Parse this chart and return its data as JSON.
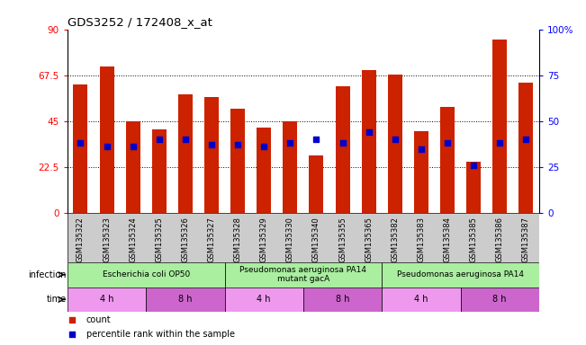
{
  "title": "GDS3252 / 172408_x_at",
  "samples": [
    "GSM135322",
    "GSM135323",
    "GSM135324",
    "GSM135325",
    "GSM135326",
    "GSM135327",
    "GSM135328",
    "GSM135329",
    "GSM135330",
    "GSM135340",
    "GSM135355",
    "GSM135365",
    "GSM135382",
    "GSM135383",
    "GSM135384",
    "GSM135385",
    "GSM135386",
    "GSM135387"
  ],
  "red_values": [
    63,
    72,
    45,
    41,
    58,
    57,
    51,
    42,
    45,
    28,
    62,
    70,
    68,
    40,
    52,
    25,
    85,
    64
  ],
  "blue_values": [
    38,
    36,
    36,
    40,
    40,
    37,
    37,
    36,
    38,
    40,
    38,
    44,
    40,
    35,
    38,
    26,
    38,
    40
  ],
  "ylim_left": [
    0,
    90
  ],
  "ylim_right": [
    0,
    100
  ],
  "yticks_left": [
    0,
    22.5,
    45,
    67.5,
    90
  ],
  "yticks_right": [
    0,
    25,
    50,
    75,
    100
  ],
  "ytick_labels_left": [
    "0",
    "22.5",
    "45",
    "67.5",
    "90"
  ],
  "ytick_labels_right": [
    "0",
    "25",
    "50",
    "75",
    "100%"
  ],
  "bar_color": "#cc2200",
  "dot_color": "#0000cc",
  "infection_groups": [
    {
      "label": "Escherichia coli OP50",
      "start": 0,
      "end": 6,
      "color": "#aaeea0"
    },
    {
      "label": "Pseudomonas aeruginosa PA14\nmutant gacA",
      "start": 6,
      "end": 12,
      "color": "#aaeea0"
    },
    {
      "label": "Pseudomonas aeruginosa PA14",
      "start": 12,
      "end": 18,
      "color": "#aaeea0"
    }
  ],
  "time_groups": [
    {
      "label": "4 h",
      "start": 0,
      "end": 3,
      "color": "#ee99ee"
    },
    {
      "label": "8 h",
      "start": 3,
      "end": 6,
      "color": "#cc66cc"
    },
    {
      "label": "4 h",
      "start": 6,
      "end": 9,
      "color": "#ee99ee"
    },
    {
      "label": "8 h",
      "start": 9,
      "end": 12,
      "color": "#cc66cc"
    },
    {
      "label": "4 h",
      "start": 12,
      "end": 15,
      "color": "#ee99ee"
    },
    {
      "label": "8 h",
      "start": 15,
      "end": 18,
      "color": "#cc66cc"
    }
  ],
  "bg_color": "#ffffff",
  "sample_bg_color": "#cccccc",
  "bar_width": 0.55
}
